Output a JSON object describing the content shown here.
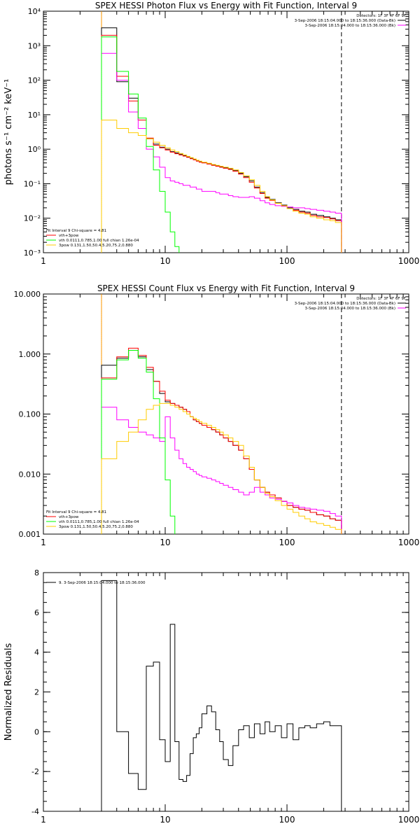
{
  "chart_data": [
    {
      "type": "line",
      "title": "SPEX HESSI Photon Flux vs Energy with Fit Function, Interval 9",
      "xlabel": "",
      "ylabel": "photons s⁻¹ cm⁻² keV⁻¹",
      "xscale": "log",
      "yscale": "log",
      "xlim": [
        1,
        1000
      ],
      "ylim": [
        0.001,
        10000
      ],
      "x_tick_labels": [
        "1",
        "10",
        "100",
        "1000"
      ],
      "y_tick_labels": [
        "10⁻³",
        "10⁻²",
        "10⁻¹",
        "10⁰",
        "10¹",
        "10²",
        "10³",
        "10⁴"
      ],
      "energy_edges": [
        3,
        4,
        5,
        6,
        7,
        8,
        9,
        10,
        11,
        12,
        13,
        14,
        15,
        16,
        17,
        18,
        19,
        20,
        22,
        24,
        26,
        28,
        30,
        33,
        36,
        40,
        44,
        49,
        54,
        60,
        66,
        72,
        80,
        90,
        100,
        112,
        125,
        140,
        155,
        175,
        200,
        225,
        250,
        280
      ],
      "series": [
        {
          "name": "",
          "color": "#000000",
          "values": [
            3300,
            90,
            30,
            7,
            2.0,
            1.4,
            1.15,
            1.0,
            0.85,
            0.78,
            0.72,
            0.66,
            0.6,
            0.55,
            0.51,
            0.47,
            0.44,
            0.41,
            0.38,
            0.35,
            0.33,
            0.31,
            0.29,
            0.27,
            0.24,
            0.2,
            0.16,
            0.12,
            0.08,
            0.055,
            0.04,
            0.035,
            0.028,
            0.024,
            0.02,
            0.018,
            0.016,
            0.015,
            0.013,
            0.012,
            0.011,
            0.01,
            0.009
          ]
        },
        {
          "name": "vth+3pow",
          "color": "#ff0000",
          "values": [
            2000,
            130,
            25,
            7,
            2.1,
            1.3,
            1.1,
            0.95,
            0.82,
            0.74,
            0.68,
            0.63,
            0.58,
            0.53,
            0.49,
            0.45,
            0.42,
            0.4,
            0.37,
            0.34,
            0.32,
            0.3,
            0.28,
            0.26,
            0.23,
            0.19,
            0.15,
            0.11,
            0.075,
            0.052,
            0.038,
            0.033,
            0.027,
            0.023,
            0.019,
            0.017,
            0.015,
            0.014,
            0.012,
            0.011,
            0.0105,
            0.0095,
            0.0085
          ]
        },
        {
          "name": "",
          "color": "#ff00ff",
          "values": [
            600,
            100,
            12,
            4.0,
            1.0,
            0.6,
            0.3,
            0.15,
            0.12,
            0.11,
            0.1,
            0.09,
            0.09,
            0.08,
            0.08,
            0.07,
            0.07,
            0.06,
            0.06,
            0.06,
            0.055,
            0.05,
            0.05,
            0.045,
            0.042,
            0.04,
            0.04,
            0.042,
            0.038,
            0.032,
            0.028,
            0.025,
            0.023,
            0.022,
            0.021,
            0.02,
            0.02,
            0.019,
            0.018,
            0.017,
            0.016,
            0.015,
            0.014
          ]
        },
        {
          "name": "vth 0.0111,0.785,1.00  full chian 1.26e-04",
          "color": "#00ff00",
          "values": [
            1800,
            180,
            40,
            8,
            1.2,
            0.25,
            0.06,
            0.015,
            0.004,
            0.0015,
            0.0008
          ]
        },
        {
          "name": "3pow 0.131,1.50,50.4,5.20,75.2,0.880",
          "color": "#ffcc00",
          "values": [
            7,
            4,
            3,
            2.5,
            2.0,
            1.6,
            1.3,
            1.1,
            0.95,
            0.85,
            0.75,
            0.68,
            0.62,
            0.57,
            0.52,
            0.48,
            0.45,
            0.42,
            0.39,
            0.36,
            0.34,
            0.32,
            0.3,
            0.28,
            0.25,
            0.21,
            0.17,
            0.13,
            0.09,
            0.06,
            0.042,
            0.034,
            0.027,
            0.023,
            0.019,
            0.016,
            0.014,
            0.013,
            0.011,
            0.01,
            0.009,
            0.0085,
            0.0075
          ]
        }
      ],
      "vertical_lines": [
        {
          "x": 3,
          "style": "dotted",
          "color": "#000000"
        },
        {
          "x": 3,
          "style": "solid",
          "color": "#ff9900"
        },
        {
          "x": 280,
          "style": "dashed",
          "color": "#000000"
        }
      ],
      "legend_left": {
        "placement": "bottom-left",
        "header": "Fit Interval  9    Chi-square = 4.81",
        "entries": [
          {
            "label": "vth+3pow",
            "color": "#ff0000"
          },
          {
            "label": "vth 0.0111,0.785,1.00  full chian 1.26e-04",
            "color": "#00ff00"
          },
          {
            "label": "3pow 0.131,1.50,50.4,5.20,75.2,0.880",
            "color": "#ffcc00"
          }
        ]
      },
      "legend_right": {
        "placement": "top-right",
        "header": "Detectors: 1F 3F 4F 6F 9F",
        "entries": [
          {
            "label": "3-Sep-2006 18:15:04.000 to 18:15:36.000 (Data-Bk)",
            "color": "#000000"
          },
          {
            "label": "3-Sep-2006 18:15:04.000 to 18:15:36.000 (Bk)",
            "color": "#ff00ff"
          }
        ]
      }
    },
    {
      "type": "line",
      "title": "SPEX HESSI Count Flux vs Energy with Fit Function, Interval 9",
      "xlabel": "",
      "ylabel": "",
      "xscale": "log",
      "yscale": "log",
      "xlim": [
        1,
        1000
      ],
      "ylim": [
        0.001,
        10
      ],
      "x_tick_labels": [
        "1",
        "10",
        "100",
        "1000"
      ],
      "y_tick_labels": [
        "0.001",
        "0.010",
        "0.100",
        "1.000",
        "10.000"
      ],
      "energy_edges": [
        3,
        4,
        5,
        6,
        7,
        8,
        9,
        10,
        11,
        12,
        13,
        14,
        15,
        16,
        17,
        18,
        19,
        20,
        22,
        24,
        26,
        28,
        30,
        33,
        36,
        40,
        44,
        49,
        54,
        60,
        66,
        72,
        80,
        90,
        100,
        112,
        125,
        140,
        155,
        175,
        200,
        225,
        250,
        280
      ],
      "series": [
        {
          "name": "",
          "color": "#000000",
          "values": [
            0.65,
            0.85,
            1.15,
            0.9,
            0.55,
            0.35,
            0.22,
            0.16,
            0.15,
            0.14,
            0.13,
            0.12,
            0.11,
            0.09,
            0.08,
            0.075,
            0.07,
            0.065,
            0.06,
            0.055,
            0.05,
            0.045,
            0.04,
            0.035,
            0.03,
            0.025,
            0.018,
            0.012,
            0.008,
            0.006,
            0.005,
            0.0045,
            0.004,
            0.0035,
            0.003,
            0.0028,
            0.0026,
            0.0025,
            0.0023,
            0.0021,
            0.002,
            0.0018,
            0.0017
          ]
        },
        {
          "name": "vth+3pow",
          "color": "#ff0000",
          "values": [
            0.4,
            0.9,
            1.25,
            0.95,
            0.6,
            0.35,
            0.24,
            0.17,
            0.15,
            0.14,
            0.13,
            0.12,
            0.11,
            0.09,
            0.08,
            0.075,
            0.07,
            0.065,
            0.06,
            0.055,
            0.05,
            0.045,
            0.04,
            0.035,
            0.03,
            0.025,
            0.018,
            0.012,
            0.008,
            0.006,
            0.005,
            0.0045,
            0.004,
            0.0035,
            0.003,
            0.0028,
            0.0026,
            0.0025,
            0.0023,
            0.0021,
            0.002,
            0.0018,
            0.0017
          ]
        },
        {
          "name": "",
          "color": "#ff00ff",
          "values": [
            0.13,
            0.08,
            0.06,
            0.05,
            0.045,
            0.04,
            0.035,
            0.09,
            0.04,
            0.025,
            0.018,
            0.015,
            0.013,
            0.012,
            0.011,
            0.01,
            0.0095,
            0.009,
            0.0085,
            0.008,
            0.0075,
            0.007,
            0.0065,
            0.006,
            0.0055,
            0.005,
            0.0045,
            0.005,
            0.006,
            0.005,
            0.0045,
            0.004,
            0.0038,
            0.0035,
            0.0033,
            0.003,
            0.0028,
            0.0027,
            0.0026,
            0.0025,
            0.0024,
            0.0022,
            0.002
          ]
        },
        {
          "name": "vth 0.0111,0.785,1.00  full chian 1.26e-04",
          "color": "#00ff00",
          "values": [
            0.38,
            0.8,
            1.15,
            0.85,
            0.5,
            0.18,
            0.04,
            0.008,
            0.002,
            0.0007
          ]
        },
        {
          "name": "3pow 0.131,1.50,50.4,5.20,75.2,0.880",
          "color": "#ffcc00",
          "values": [
            0.018,
            0.035,
            0.05,
            0.08,
            0.12,
            0.14,
            0.15,
            0.15,
            0.14,
            0.13,
            0.12,
            0.11,
            0.1,
            0.09,
            0.085,
            0.08,
            0.075,
            0.07,
            0.065,
            0.06,
            0.055,
            0.05,
            0.045,
            0.04,
            0.035,
            0.03,
            0.02,
            0.013,
            0.008,
            0.006,
            0.0048,
            0.0042,
            0.0036,
            0.003,
            0.0026,
            0.0023,
            0.002,
            0.0018,
            0.0016,
            0.0015,
            0.0014,
            0.0013,
            0.0012
          ]
        }
      ],
      "vertical_lines": [
        {
          "x": 3,
          "style": "dotted",
          "color": "#000000"
        },
        {
          "x": 3,
          "style": "solid",
          "color": "#ff9900"
        },
        {
          "x": 280,
          "style": "dashed",
          "color": "#000000"
        }
      ],
      "legend_left": {
        "placement": "bottom-left",
        "header": "Fit Interval  9    Chi-square = 4.81",
        "entries": [
          {
            "label": "vth+3pow",
            "color": "#ff0000"
          },
          {
            "label": "vth 0.0111,0.785,1.00  full chian 1.26e-04",
            "color": "#00ff00"
          },
          {
            "label": "3pow 0.131,1.50,50.4,5.20,75.2,0.880",
            "color": "#ffcc00"
          }
        ]
      },
      "legend_right": {
        "placement": "top-right",
        "header": "Detectors: 1F 3F 4F 6F 9F",
        "entries": [
          {
            "label": "3-Sep-2006 18:15:04.000 to 18:15:36.000 (Data-Bk)",
            "color": "#000000"
          },
          {
            "label": "3-Sep-2006 18:15:04.000 to 18:15:36.000 (Bk)",
            "color": "#ff00ff"
          }
        ]
      }
    },
    {
      "type": "line",
      "title": "",
      "xlabel": "",
      "ylabel": "Normalized Residuals",
      "xscale": "log",
      "yscale": "linear",
      "xlim": [
        1,
        1000
      ],
      "ylim": [
        -4,
        8
      ],
      "x_tick_labels": [
        "1",
        "10",
        "100",
        "1000"
      ],
      "y_tick_labels": [
        "-4",
        "-2",
        "0",
        "2",
        "4",
        "6",
        "8"
      ],
      "energy_edges": [
        3,
        4,
        5,
        6,
        7,
        8,
        9,
        10,
        11,
        12,
        13,
        14,
        15,
        16,
        17,
        18,
        19,
        20,
        22,
        24,
        26,
        28,
        30,
        33,
        36,
        40,
        44,
        49,
        54,
        60,
        66,
        72,
        80,
        90,
        100,
        112,
        125,
        140,
        155,
        175,
        200,
        225,
        250,
        280
      ],
      "series": [
        {
          "name": "9.  3-Sep-2006 18:15:04.000 to 18:15:36.000",
          "color": "#000000",
          "values": [
            7.6,
            0.0,
            -2.1,
            -2.9,
            3.3,
            3.5,
            -0.4,
            -1.5,
            5.4,
            -0.5,
            -2.4,
            -2.5,
            -2.2,
            -1.1,
            -0.3,
            -0.1,
            0.2,
            0.9,
            1.3,
            1.0,
            0.1,
            -0.5,
            -1.4,
            -1.7,
            -0.7,
            0.1,
            0.3,
            -0.3,
            0.4,
            -0.1,
            0.5,
            0.0,
            0.3,
            -0.3,
            0.4,
            -0.4,
            0.2,
            0.3,
            0.2,
            0.4,
            0.5,
            0.3,
            0.3
          ]
        }
      ],
      "vertical_lines": [],
      "legend_left": {
        "placement": "top-left",
        "header": "",
        "entries": [
          {
            "label": "9.  3-Sep-2006 18:15:04.000 to 18:15:36.000",
            "color": "#000000"
          }
        ]
      },
      "legend_right": {
        "placement": "",
        "header": "",
        "entries": []
      }
    }
  ]
}
